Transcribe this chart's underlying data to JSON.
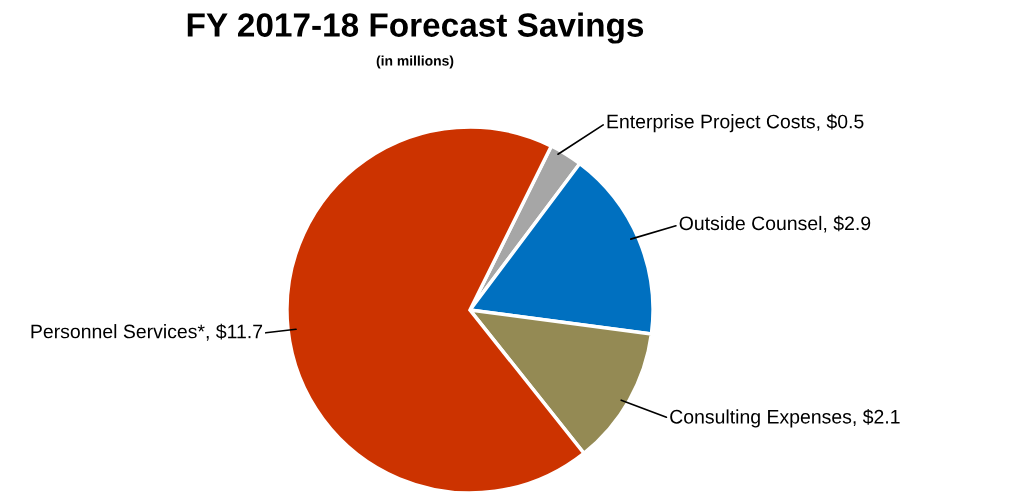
{
  "chart_data": {
    "type": "pie",
    "title": "FY 2017-18 Forecast Savings",
    "subtitle": "(in millions)",
    "categories": [
      "Enterprise Project Costs",
      "Outside Counsel",
      "Consulting Expenses",
      "Personnel Services*"
    ],
    "values": [
      0.5,
      2.9,
      2.1,
      11.7
    ],
    "value_labels": [
      "$0.5",
      "$2.9",
      "$2.1",
      "$11.7"
    ],
    "colors": [
      "#a6a6a6",
      "#0070c0",
      "#948a54",
      "#cc3300"
    ]
  }
}
